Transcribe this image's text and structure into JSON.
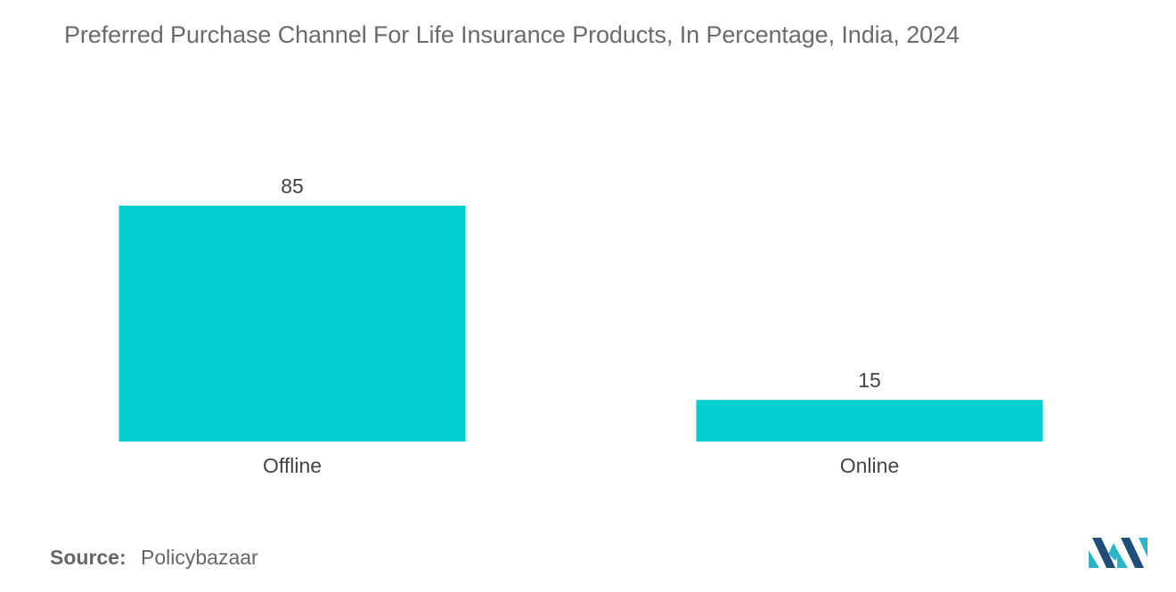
{
  "title": "Preferred Purchase Channel For Life Insurance Products, In Percentage, India, 2024",
  "source": {
    "label": "Source:",
    "value": "Policybazaar"
  },
  "colors": {
    "bar": "#00CED1",
    "logo_dark": "#1f4e79",
    "logo_light": "#2bb5c9"
  },
  "chart_data": {
    "type": "bar",
    "title": "Preferred Purchase Channel For Life Insurance Products, In Percentage, India, 2024",
    "categories": [
      "Offline",
      "Online"
    ],
    "values": [
      85,
      15
    ],
    "data_labels": [
      "85",
      "15"
    ],
    "xlabel": "",
    "ylabel": "",
    "ylim": [
      0,
      85
    ],
    "grid": false,
    "legend": "none"
  }
}
